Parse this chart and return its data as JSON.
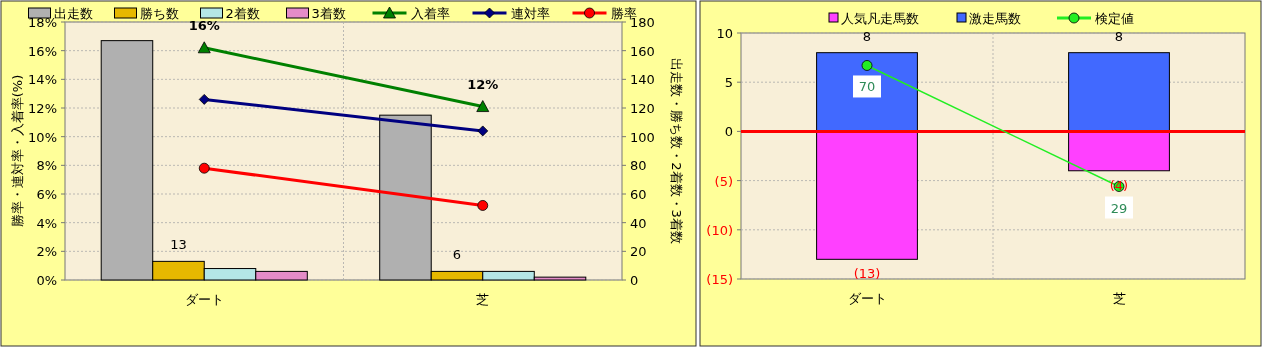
{
  "chart_data": [
    {
      "type": "bar",
      "categories": [
        "ダート",
        "芝"
      ],
      "ylabel": "勝率・連対率・入着率(%)",
      "y2label": "出走数・勝ち数・2着数・3着数",
      "ylim": [
        0,
        18
      ],
      "yticks": [
        {
          "value": 0,
          "label": "0%"
        },
        {
          "value": 2,
          "label": "2%"
        },
        {
          "value": 4,
          "label": "4%"
        },
        {
          "value": 6,
          "label": "6%"
        },
        {
          "value": 8,
          "label": "8%"
        },
        {
          "value": 10,
          "label": "10%"
        },
        {
          "value": 12,
          "label": "12%"
        },
        {
          "value": 14,
          "label": "14%"
        },
        {
          "value": 16,
          "label": "16%"
        },
        {
          "value": 18,
          "label": "18%"
        }
      ],
      "y2lim": [
        0,
        180
      ],
      "y2ticks": [
        0,
        20,
        40,
        60,
        80,
        100,
        120,
        140,
        160,
        180
      ],
      "grid": true,
      "legend": "top",
      "series": [
        {
          "name": "出走数",
          "axis": "y2",
          "color": "#b0b0b0",
          "values": [
            167,
            115
          ]
        },
        {
          "name": "勝ち数",
          "axis": "y2",
          "color": "#e6b800",
          "values": [
            13,
            6
          ],
          "value_labels": [
            "13",
            "6"
          ]
        },
        {
          "name": "2着数",
          "axis": "y2",
          "color": "#b4e6e6",
          "values": [
            8,
            6
          ]
        },
        {
          "name": "3着数",
          "axis": "y2",
          "color": "#e48cc8",
          "values": [
            6,
            2
          ]
        },
        {
          "name": "入着率",
          "type": "line",
          "color": "#008000",
          "marker": "triangle",
          "values": [
            16.2,
            12.1
          ],
          "value_labels": [
            "16%",
            "12%"
          ]
        },
        {
          "name": "連対率",
          "type": "line",
          "color": "#000080",
          "marker": "diamond",
          "values": [
            12.6,
            10.4
          ]
        },
        {
          "name": "勝率",
          "type": "line",
          "color": "#ff0000",
          "marker": "circle",
          "values": [
            7.8,
            5.2
          ]
        }
      ]
    },
    {
      "type": "bar",
      "categories": [
        "ダート",
        "芝"
      ],
      "stacked": true,
      "ylim": [
        -15,
        10
      ],
      "yticks": [
        {
          "value": 10,
          "label": "10"
        },
        {
          "value": 5,
          "label": "5"
        },
        {
          "value": 0,
          "label": "0"
        },
        {
          "value": -5,
          "label": "(5)"
        },
        {
          "value": -10,
          "label": "(10)"
        },
        {
          "value": -15,
          "label": "(15)"
        }
      ],
      "grid": true,
      "legend": "top",
      "ref_lines": [
        {
          "axis": "y",
          "value": 0,
          "color": "#ff0000"
        }
      ],
      "series": [
        {
          "name": "人気凡走馬数",
          "color": "#ff40ff",
          "values": [
            -13,
            -4
          ],
          "value_labels": [
            "(13)",
            "(4)"
          ]
        },
        {
          "name": "激走馬数",
          "color": "#4169ff",
          "values": [
            8,
            8
          ],
          "value_labels": [
            "8",
            "8"
          ]
        },
        {
          "name": "検定値",
          "type": "line",
          "color": "#22ee22",
          "marker": "circle",
          "values": [
            6.7,
            -5.6
          ]
        }
      ],
      "annotations": [
        {
          "text": "70",
          "x": "ダート",
          "y": 6.7
        },
        {
          "text": "29",
          "x": "芝",
          "y": -5.6
        }
      ]
    }
  ]
}
